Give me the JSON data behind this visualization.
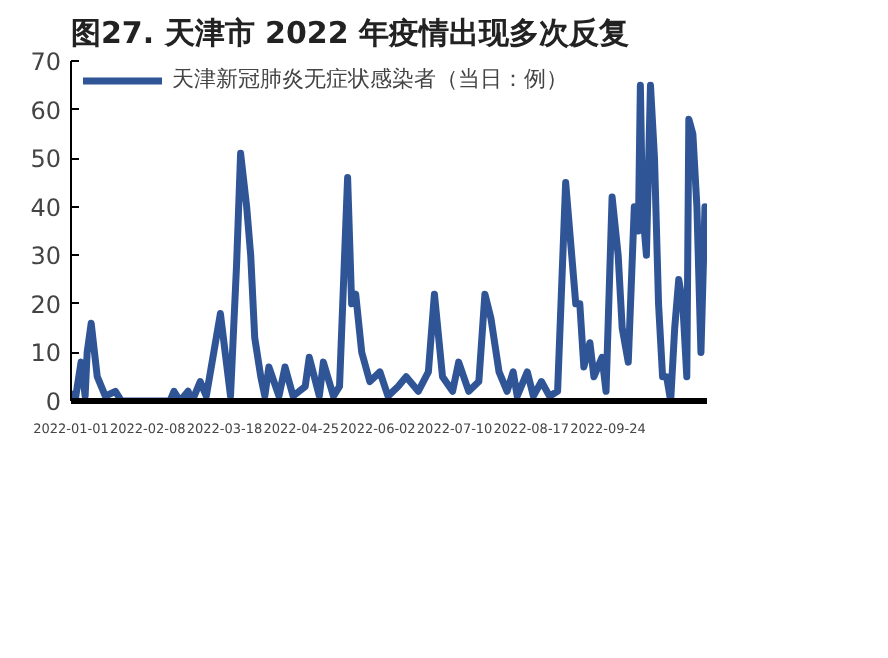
{
  "chart_data": {
    "type": "line",
    "title": "图27. 天津市 2022 年疫情出现多次反复",
    "legend": "top",
    "grid": false,
    "marker": "none",
    "line_style": "solid",
    "xlim": [
      "2022-01-01",
      "2022-11-12"
    ],
    "xticks": [
      "2022-01-01",
      "2022-02-08",
      "2022-03-18",
      "2022-04-25",
      "2022-06-02",
      "2022-07-10",
      "2022-08-17",
      "2022-09-24"
    ],
    "ylim": [
      0,
      70
    ],
    "yticks": [
      0,
      10,
      20,
      30,
      40,
      50,
      60,
      70
    ],
    "x": [
      "2022-01-01",
      "2022-01-03",
      "2022-01-06",
      "2022-01-08",
      "2022-01-09",
      "2022-01-11",
      "2022-01-14",
      "2022-01-18",
      "2022-01-23",
      "2022-01-26",
      "2022-02-19",
      "2022-02-21",
      "2022-02-24",
      "2022-02-28",
      "2022-03-02",
      "2022-03-06",
      "2022-03-09",
      "2022-03-16",
      "2022-03-21",
      "2022-03-24",
      "2022-03-26",
      "2022-03-29",
      "2022-03-31",
      "2022-04-02",
      "2022-04-05",
      "2022-04-07",
      "2022-04-09",
      "2022-04-14",
      "2022-04-17",
      "2022-04-21",
      "2022-04-27",
      "2022-04-29",
      "2022-05-04",
      "2022-05-06",
      "2022-05-11",
      "2022-05-14",
      "2022-05-18",
      "2022-05-20",
      "2022-05-22",
      "2022-05-25",
      "2022-05-29",
      "2022-06-03",
      "2022-06-07",
      "2022-06-12",
      "2022-06-16",
      "2022-06-22",
      "2022-06-27",
      "2022-06-30",
      "2022-07-04",
      "2022-07-09",
      "2022-07-12",
      "2022-07-17",
      "2022-07-22",
      "2022-07-25",
      "2022-07-28",
      "2022-08-01",
      "2022-08-05",
      "2022-08-08",
      "2022-08-10",
      "2022-08-15",
      "2022-08-18",
      "2022-08-22",
      "2022-08-26",
      "2022-08-30",
      "2022-09-03",
      "2022-09-06",
      "2022-09-08",
      "2022-09-10",
      "2022-09-12",
      "2022-09-15",
      "2022-09-17",
      "2022-09-21",
      "2022-09-23",
      "2022-09-26",
      "2022-09-29",
      "2022-10-01",
      "2022-10-04",
      "2022-10-07",
      "2022-10-09",
      "2022-10-10",
      "2022-10-11",
      "2022-10-13",
      "2022-10-15",
      "2022-10-17",
      "2022-10-19",
      "2022-10-21",
      "2022-10-23",
      "2022-10-25",
      "2022-10-27",
      "2022-10-29",
      "2022-10-31",
      "2022-11-02",
      "2022-11-03",
      "2022-11-05",
      "2022-11-07",
      "2022-11-09",
      "2022-11-11",
      "2022-11-12"
    ],
    "series": [
      {
        "name": "天津新冠肺炎无症状感染者（当日：例）",
        "color": "#2f5597",
        "values": [
          2,
          0,
          8,
          1,
          10,
          16,
          5,
          1,
          2,
          0,
          0,
          2,
          0,
          2,
          0,
          4,
          1,
          18,
          1,
          28,
          51,
          40,
          30,
          13,
          5,
          1,
          7,
          1,
          7,
          1,
          3,
          9,
          1,
          8,
          1,
          3,
          46,
          20,
          22,
          10,
          4,
          6,
          1,
          3,
          5,
          2,
          6,
          22,
          5,
          2,
          8,
          2,
          4,
          22,
          17,
          6,
          2,
          6,
          1,
          6,
          1,
          4,
          1,
          2,
          45,
          30,
          20,
          20,
          7,
          12,
          5,
          9,
          2,
          42,
          30,
          15,
          8,
          40,
          35,
          65,
          40,
          30,
          65,
          50,
          20,
          5,
          5,
          0,
          15,
          25,
          20,
          5,
          58,
          55,
          40,
          10,
          40,
          35
        ]
      }
    ]
  }
}
